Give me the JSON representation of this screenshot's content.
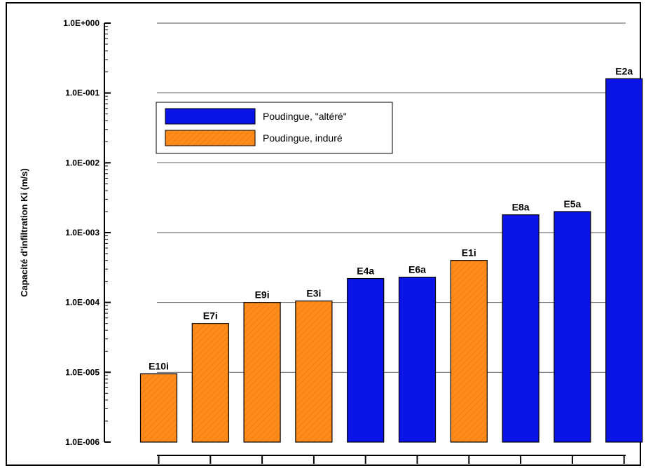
{
  "chart_data": {
    "type": "bar",
    "title": "",
    "xlabel": "",
    "ylabel": "Capacité d'infiltration Ki (m/s)",
    "yscale": "log",
    "ylim": [
      1e-06,
      1
    ],
    "grid": "horizontal lines at each decade",
    "legend_position": "top-left",
    "ytick_values": [
      1e-06,
      1e-05,
      0.0001,
      0.001,
      0.01,
      0.1,
      1
    ],
    "ytick_labels": [
      "1.0E-006",
      "1.0E-005",
      "1.0E-004",
      "1.0E-003",
      "1.0E-002",
      "1.0E-001",
      "1.0E+000"
    ],
    "series": [
      {
        "name": "Poudingue, \"altéré\"",
        "color": "#0a14e6"
      },
      {
        "name": "Poudingue, induré",
        "color": "#ff8c1a"
      }
    ],
    "categories": [
      "E10i",
      "E7i",
      "E9i",
      "E3i",
      "E4a",
      "E6a",
      "E1i",
      "E8a",
      "E5a",
      "E2a"
    ],
    "values": [
      9.5e-06,
      5e-05,
      0.0001,
      0.000105,
      0.00022,
      0.00023,
      0.0004,
      0.0018,
      0.002,
      0.16
    ],
    "bar_series": [
      1,
      1,
      1,
      1,
      0,
      0,
      1,
      0,
      0,
      0
    ]
  }
}
